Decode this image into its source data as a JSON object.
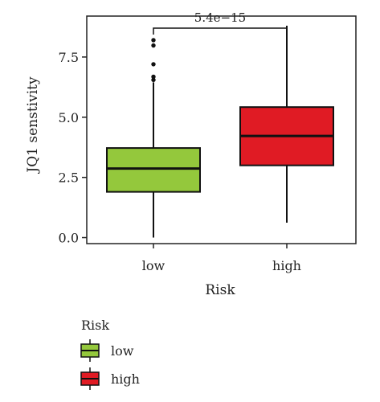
{
  "chart_data": {
    "type": "boxplot",
    "xlabel": "Risk",
    "ylabel": "JQ1 senstivity",
    "categories": [
      "low",
      "high"
    ],
    "y_ticks": [
      "0.0",
      "2.5",
      "5.0",
      "7.5"
    ],
    "ylim": [
      -0.25,
      9.2
    ],
    "boxes": [
      {
        "category": "low",
        "color": "#94c83c",
        "whisker_low": 0.0,
        "q1": 1.9,
        "median": 2.87,
        "q3": 3.72,
        "whisker_high": 6.45,
        "outliers": [
          6.55,
          6.68,
          7.2,
          7.98,
          8.2
        ]
      },
      {
        "category": "high",
        "color": "#e01b24",
        "whisker_low": 0.62,
        "q1": 3.0,
        "median": 4.22,
        "q3": 5.42,
        "whisker_high": 8.8,
        "outliers": []
      }
    ],
    "comparison": {
      "label": "5.4e−15",
      "between": [
        "low",
        "high"
      ]
    },
    "legend": {
      "title": "Risk",
      "position": "bottom-left",
      "entries": [
        {
          "label": "low",
          "color": "#94c83c"
        },
        {
          "label": "high",
          "color": "#e01b24"
        }
      ]
    }
  }
}
